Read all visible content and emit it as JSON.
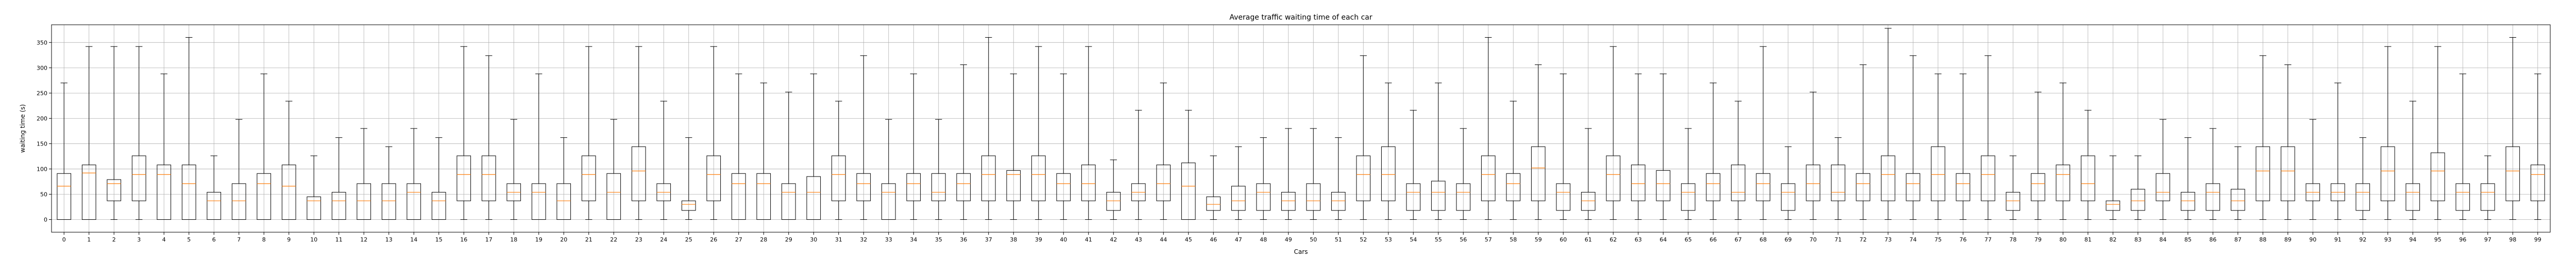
{
  "chart_data": {
    "type": "boxplot",
    "title": "Average traffic waiting time of each car",
    "xlabel": "Cars",
    "ylabel": "waiting time (s)",
    "ylim": [
      -25,
      385
    ],
    "yticks": [
      0,
      50,
      100,
      150,
      200,
      250,
      300,
      350
    ],
    "grid": true,
    "colors": {
      "box": "#000000",
      "median": "#ff7f0e",
      "grid": "#b0b0b0"
    },
    "boxes": [
      {
        "label": "0",
        "whislo": 0,
        "q1": 0,
        "med": 66,
        "q3": 91,
        "whishi": 270
      },
      {
        "label": "1",
        "whislo": 0,
        "q1": 0,
        "med": 92,
        "q3": 108,
        "whishi": 342
      },
      {
        "label": "2",
        "whislo": 0,
        "q1": 37,
        "med": 71,
        "q3": 79,
        "whishi": 342
      },
      {
        "label": "3",
        "whislo": 0,
        "q1": 37,
        "med": 89,
        "q3": 126,
        "whishi": 342
      },
      {
        "label": "4",
        "whislo": 0,
        "q1": 0,
        "med": 89,
        "q3": 108,
        "whishi": 288
      },
      {
        "label": "5",
        "whislo": 0,
        "q1": 0,
        "med": 71,
        "q3": 108,
        "whishi": 360
      },
      {
        "label": "6",
        "whislo": 0,
        "q1": 0,
        "med": 37,
        "q3": 54,
        "whishi": 126
      },
      {
        "label": "7",
        "whislo": 0,
        "q1": 0,
        "med": 37,
        "q3": 71,
        "whishi": 198
      },
      {
        "label": "8",
        "whislo": 0,
        "q1": 0,
        "med": 71,
        "q3": 91,
        "whishi": 288
      },
      {
        "label": "9",
        "whislo": 0,
        "q1": 0,
        "med": 66,
        "q3": 108,
        "whishi": 234
      },
      {
        "label": "10",
        "whislo": 0,
        "q1": 0,
        "med": 37,
        "q3": 45,
        "whishi": 126
      },
      {
        "label": "11",
        "whislo": 0,
        "q1": 0,
        "med": 37,
        "q3": 54,
        "whishi": 162
      },
      {
        "label": "12",
        "whislo": 0,
        "q1": 0,
        "med": 37,
        "q3": 71,
        "whishi": 180
      },
      {
        "label": "13",
        "whislo": 0,
        "q1": 0,
        "med": 37,
        "q3": 71,
        "whishi": 144
      },
      {
        "label": "14",
        "whislo": 0,
        "q1": 0,
        "med": 54,
        "q3": 71,
        "whishi": 180
      },
      {
        "label": "15",
        "whislo": 0,
        "q1": 0,
        "med": 37,
        "q3": 54,
        "whishi": 162
      },
      {
        "label": "16",
        "whislo": 0,
        "q1": 37,
        "med": 89,
        "q3": 126,
        "whishi": 342
      },
      {
        "label": "17",
        "whislo": 0,
        "q1": 37,
        "med": 89,
        "q3": 126,
        "whishi": 324
      },
      {
        "label": "18",
        "whislo": 0,
        "q1": 37,
        "med": 54,
        "q3": 71,
        "whishi": 198
      },
      {
        "label": "19",
        "whislo": 0,
        "q1": 0,
        "med": 54,
        "q3": 71,
        "whishi": 288
      },
      {
        "label": "20",
        "whislo": 0,
        "q1": 0,
        "med": 37,
        "q3": 71,
        "whishi": 162
      },
      {
        "label": "21",
        "whislo": 0,
        "q1": 37,
        "med": 89,
        "q3": 126,
        "whishi": 342
      },
      {
        "label": "22",
        "whislo": 0,
        "q1": 0,
        "med": 54,
        "q3": 91,
        "whishi": 198
      },
      {
        "label": "23",
        "whislo": 0,
        "q1": 37,
        "med": 96,
        "q3": 144,
        "whishi": 342
      },
      {
        "label": "24",
        "whislo": 0,
        "q1": 37,
        "med": 54,
        "q3": 71,
        "whishi": 234
      },
      {
        "label": "25",
        "whislo": 0,
        "q1": 18,
        "med": 30,
        "q3": 37,
        "whishi": 162
      },
      {
        "label": "26",
        "whislo": 0,
        "q1": 37,
        "med": 89,
        "q3": 126,
        "whishi": 342
      },
      {
        "label": "27",
        "whislo": 0,
        "q1": 0,
        "med": 71,
        "q3": 91,
        "whishi": 288
      },
      {
        "label": "28",
        "whislo": 0,
        "q1": 0,
        "med": 71,
        "q3": 91,
        "whishi": 270
      },
      {
        "label": "29",
        "whislo": 0,
        "q1": 0,
        "med": 54,
        "q3": 71,
        "whishi": 252
      },
      {
        "label": "30",
        "whislo": 0,
        "q1": 0,
        "med": 54,
        "q3": 85,
        "whishi": 288
      },
      {
        "label": "31",
        "whislo": 0,
        "q1": 37,
        "med": 89,
        "q3": 126,
        "whishi": 234
      },
      {
        "label": "32",
        "whislo": 0,
        "q1": 37,
        "med": 71,
        "q3": 91,
        "whishi": 324
      },
      {
        "label": "33",
        "whislo": 0,
        "q1": 0,
        "med": 54,
        "q3": 71,
        "whishi": 198
      },
      {
        "label": "34",
        "whislo": 0,
        "q1": 37,
        "med": 71,
        "q3": 91,
        "whishi": 288
      },
      {
        "label": "35",
        "whislo": 0,
        "q1": 37,
        "med": 54,
        "q3": 91,
        "whishi": 198
      },
      {
        "label": "36",
        "whislo": 0,
        "q1": 37,
        "med": 71,
        "q3": 91,
        "whishi": 306
      },
      {
        "label": "37",
        "whislo": 0,
        "q1": 37,
        "med": 89,
        "q3": 126,
        "whishi": 360
      },
      {
        "label": "38",
        "whislo": 0,
        "q1": 37,
        "med": 89,
        "q3": 97,
        "whishi": 288
      },
      {
        "label": "39",
        "whislo": 0,
        "q1": 37,
        "med": 89,
        "q3": 126,
        "whishi": 342
      },
      {
        "label": "40",
        "whislo": 0,
        "q1": 37,
        "med": 71,
        "q3": 91,
        "whishi": 288
      },
      {
        "label": "41",
        "whislo": 0,
        "q1": 37,
        "med": 71,
        "q3": 108,
        "whishi": 342
      },
      {
        "label": "42",
        "whislo": 0,
        "q1": 18,
        "med": 37,
        "q3": 54,
        "whishi": 118
      },
      {
        "label": "43",
        "whislo": 0,
        "q1": 37,
        "med": 54,
        "q3": 71,
        "whishi": 216
      },
      {
        "label": "44",
        "whislo": 0,
        "q1": 37,
        "med": 71,
        "q3": 108,
        "whishi": 270
      },
      {
        "label": "45",
        "whislo": 0,
        "q1": 0,
        "med": 66,
        "q3": 112,
        "whishi": 216
      },
      {
        "label": "46",
        "whislo": 0,
        "q1": 18,
        "med": 30,
        "q3": 45,
        "whishi": 126
      },
      {
        "label": "47",
        "whislo": 0,
        "q1": 18,
        "med": 37,
        "q3": 66,
        "whishi": 144
      },
      {
        "label": "48",
        "whislo": 0,
        "q1": 18,
        "med": 54,
        "q3": 71,
        "whishi": 162
      },
      {
        "label": "49",
        "whislo": 0,
        "q1": 18,
        "med": 37,
        "q3": 54,
        "whishi": 180
      },
      {
        "label": "50",
        "whislo": 0,
        "q1": 18,
        "med": 37,
        "q3": 71,
        "whishi": 180
      },
      {
        "label": "51",
        "whislo": 0,
        "q1": 18,
        "med": 37,
        "q3": 54,
        "whishi": 162
      },
      {
        "label": "52",
        "whislo": 0,
        "q1": 37,
        "med": 89,
        "q3": 126,
        "whishi": 324
      },
      {
        "label": "53",
        "whislo": 0,
        "q1": 37,
        "med": 89,
        "q3": 144,
        "whishi": 270
      },
      {
        "label": "54",
        "whislo": 0,
        "q1": 18,
        "med": 54,
        "q3": 71,
        "whishi": 216
      },
      {
        "label": "55",
        "whislo": 0,
        "q1": 18,
        "med": 54,
        "q3": 76,
        "whishi": 270
      },
      {
        "label": "56",
        "whislo": 0,
        "q1": 18,
        "med": 54,
        "q3": 71,
        "whishi": 180
      },
      {
        "label": "57",
        "whislo": 0,
        "q1": 37,
        "med": 89,
        "q3": 126,
        "whishi": 360
      },
      {
        "label": "58",
        "whislo": 0,
        "q1": 37,
        "med": 71,
        "q3": 91,
        "whishi": 234
      },
      {
        "label": "59",
        "whislo": 0,
        "q1": 37,
        "med": 102,
        "q3": 144,
        "whishi": 306
      },
      {
        "label": "60",
        "whislo": 0,
        "q1": 18,
        "med": 54,
        "q3": 71,
        "whishi": 288
      },
      {
        "label": "61",
        "whislo": 0,
        "q1": 18,
        "med": 37,
        "q3": 54,
        "whishi": 180
      },
      {
        "label": "62",
        "whislo": 0,
        "q1": 37,
        "med": 89,
        "q3": 126,
        "whishi": 342
      },
      {
        "label": "63",
        "whislo": 0,
        "q1": 37,
        "med": 71,
        "q3": 108,
        "whishi": 288
      },
      {
        "label": "64",
        "whislo": 0,
        "q1": 37,
        "med": 71,
        "q3": 97,
        "whishi": 288
      },
      {
        "label": "65",
        "whislo": 0,
        "q1": 18,
        "med": 54,
        "q3": 71,
        "whishi": 180
      },
      {
        "label": "66",
        "whislo": 0,
        "q1": 37,
        "med": 71,
        "q3": 91,
        "whishi": 270
      },
      {
        "label": "67",
        "whislo": 0,
        "q1": 37,
        "med": 54,
        "q3": 108,
        "whishi": 234
      },
      {
        "label": "68",
        "whislo": 0,
        "q1": 37,
        "med": 71,
        "q3": 91,
        "whishi": 342
      },
      {
        "label": "69",
        "whislo": 0,
        "q1": 18,
        "med": 54,
        "q3": 71,
        "whishi": 144
      },
      {
        "label": "70",
        "whislo": 0,
        "q1": 37,
        "med": 71,
        "q3": 108,
        "whishi": 252
      },
      {
        "label": "71",
        "whislo": 0,
        "q1": 37,
        "med": 54,
        "q3": 108,
        "whishi": 162
      },
      {
        "label": "72",
        "whislo": 0,
        "q1": 37,
        "med": 71,
        "q3": 91,
        "whishi": 306
      },
      {
        "label": "73",
        "whislo": 0,
        "q1": 37,
        "med": 89,
        "q3": 126,
        "whishi": 378
      },
      {
        "label": "74",
        "whislo": 0,
        "q1": 37,
        "med": 71,
        "q3": 91,
        "whishi": 324
      },
      {
        "label": "75",
        "whislo": 0,
        "q1": 37,
        "med": 89,
        "q3": 144,
        "whishi": 288
      },
      {
        "label": "76",
        "whislo": 0,
        "q1": 37,
        "med": 71,
        "q3": 91,
        "whishi": 288
      },
      {
        "label": "77",
        "whislo": 0,
        "q1": 37,
        "med": 89,
        "q3": 126,
        "whishi": 324
      },
      {
        "label": "78",
        "whislo": 0,
        "q1": 18,
        "med": 37,
        "q3": 54,
        "whishi": 126
      },
      {
        "label": "79",
        "whislo": 0,
        "q1": 37,
        "med": 71,
        "q3": 91,
        "whishi": 252
      },
      {
        "label": "80",
        "whislo": 0,
        "q1": 37,
        "med": 89,
        "q3": 108,
        "whishi": 270
      },
      {
        "label": "81",
        "whislo": 0,
        "q1": 37,
        "med": 71,
        "q3": 126,
        "whishi": 216
      },
      {
        "label": "82",
        "whislo": 0,
        "q1": 18,
        "med": 30,
        "q3": 37,
        "whishi": 126
      },
      {
        "label": "83",
        "whislo": 0,
        "q1": 18,
        "med": 37,
        "q3": 60,
        "whishi": 126
      },
      {
        "label": "84",
        "whislo": 0,
        "q1": 37,
        "med": 54,
        "q3": 91,
        "whishi": 198
      },
      {
        "label": "85",
        "whislo": 0,
        "q1": 18,
        "med": 37,
        "q3": 54,
        "whishi": 162
      },
      {
        "label": "86",
        "whislo": 0,
        "q1": 18,
        "med": 54,
        "q3": 71,
        "whishi": 180
      },
      {
        "label": "87",
        "whislo": 0,
        "q1": 18,
        "med": 37,
        "q3": 60,
        "whishi": 144
      },
      {
        "label": "88",
        "whislo": 0,
        "q1": 37,
        "med": 96,
        "q3": 144,
        "whishi": 324
      },
      {
        "label": "89",
        "whislo": 0,
        "q1": 37,
        "med": 96,
        "q3": 144,
        "whishi": 306
      },
      {
        "label": "90",
        "whislo": 0,
        "q1": 37,
        "med": 54,
        "q3": 71,
        "whishi": 198
      },
      {
        "label": "91",
        "whislo": 0,
        "q1": 37,
        "med": 54,
        "q3": 71,
        "whishi": 270
      },
      {
        "label": "92",
        "whislo": 0,
        "q1": 18,
        "med": 54,
        "q3": 71,
        "whishi": 162
      },
      {
        "label": "93",
        "whislo": 0,
        "q1": 37,
        "med": 96,
        "q3": 144,
        "whishi": 342
      },
      {
        "label": "94",
        "whislo": 0,
        "q1": 18,
        "med": 54,
        "q3": 71,
        "whishi": 234
      },
      {
        "label": "95",
        "whislo": 0,
        "q1": 37,
        "med": 96,
        "q3": 132,
        "whishi": 342
      },
      {
        "label": "96",
        "whislo": 0,
        "q1": 18,
        "med": 54,
        "q3": 71,
        "whishi": 288
      },
      {
        "label": "97",
        "whislo": 0,
        "q1": 18,
        "med": 54,
        "q3": 71,
        "whishi": 126
      },
      {
        "label": "98",
        "whislo": 0,
        "q1": 37,
        "med": 96,
        "q3": 144,
        "whishi": 360
      },
      {
        "label": "99",
        "whislo": 0,
        "q1": 37,
        "med": 89,
        "q3": 108,
        "whishi": 288
      }
    ]
  }
}
